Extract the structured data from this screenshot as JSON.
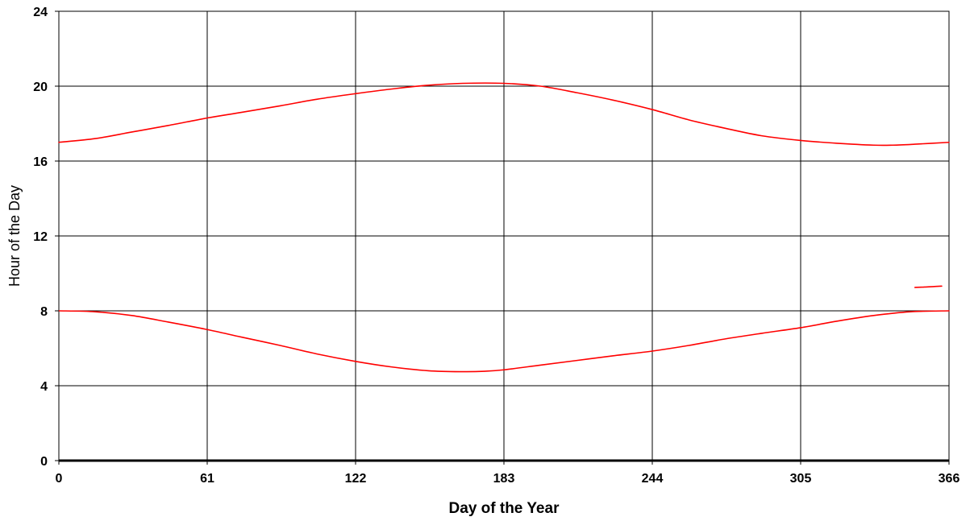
{
  "chart_data": {
    "type": "line",
    "title": "",
    "xlabel": "Day of the Year",
    "ylabel": "Hour of the Day",
    "xlim": [
      0,
      366
    ],
    "ylim": [
      0,
      24
    ],
    "xticks": [
      0,
      61,
      122,
      183,
      244,
      305,
      366
    ],
    "yticks": [
      0,
      4,
      8,
      12,
      16,
      20,
      24
    ],
    "grid": true,
    "legend": "none",
    "line_color": "#ff0000",
    "series": [
      {
        "x": [
          0,
          15,
          30,
          45,
          61,
          75,
          91,
          106,
          122,
          137,
          152,
          166,
          183,
          198,
          213,
          228,
          244,
          259,
          274,
          289,
          305,
          320,
          335,
          343,
          352,
          366
        ],
        "y": [
          17.0,
          17.2,
          17.55,
          17.9,
          18.3,
          18.6,
          18.95,
          19.3,
          19.6,
          19.85,
          20.05,
          20.15,
          20.15,
          20.0,
          19.65,
          19.25,
          18.75,
          18.2,
          17.75,
          17.35,
          17.1,
          16.95,
          16.85,
          16.85,
          16.9,
          17.0
        ]
      },
      {
        "x": [
          0,
          15,
          30,
          45,
          61,
          75,
          91,
          106,
          122,
          137,
          152,
          166,
          175,
          183,
          198,
          213,
          228,
          244,
          259,
          274,
          289,
          305,
          320,
          335,
          350,
          366
        ],
        "y": [
          8.0,
          7.95,
          7.75,
          7.4,
          7.0,
          6.6,
          6.15,
          5.7,
          5.3,
          5.0,
          4.8,
          4.75,
          4.77,
          4.85,
          5.1,
          5.35,
          5.6,
          5.85,
          6.15,
          6.5,
          6.8,
          7.1,
          7.45,
          7.75,
          7.95,
          8.0
        ]
      },
      {
        "x": [
          352,
          356,
          360,
          363
        ],
        "y": [
          9.25,
          9.27,
          9.3,
          9.32
        ]
      }
    ]
  }
}
